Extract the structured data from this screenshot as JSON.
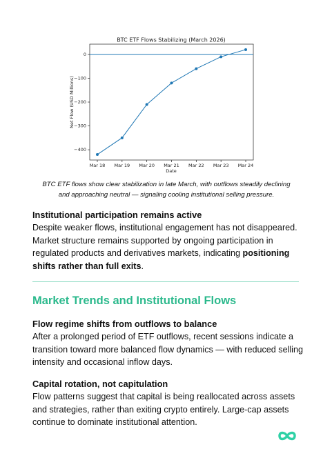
{
  "chart_data": {
    "type": "line",
    "title": "BTC ETF Flows Stabilizing (March 2026)",
    "xlabel": "Date",
    "ylabel": "Net Flow (USD Millions)",
    "categories": [
      "Mar 18",
      "Mar 19",
      "Mar 20",
      "Mar 21",
      "Mar 22",
      "Mar 23",
      "Mar 24"
    ],
    "values": [
      -420,
      -350,
      -210,
      -120,
      -60,
      -10,
      20
    ],
    "color": "#1f77b4",
    "ylim": [
      -443,
      43
    ],
    "yticks": [
      {
        "value": -400,
        "label": "−400"
      },
      {
        "value": -300,
        "label": "−300"
      },
      {
        "value": -200,
        "label": "−200"
      },
      {
        "value": -100,
        "label": "−100"
      },
      0
    ],
    "hline": 0,
    "grid": false
  },
  "caption": "BTC ETF flows show clear stabilization in late March, with outflows steadily declining and approaching neutral — signaling cooling institutional selling pressure.",
  "section1": {
    "heading": "Institutional participation remains active",
    "text": "Despite weaker flows, institutional engagement has not disappeared. Market structure remains supported by ongoing participation in regulated products and derivatives markets, indicating ",
    "bold": "positioning shifts rather than full exits",
    "end": "."
  },
  "section2": {
    "heading": "Market Trends and Institutional Flows"
  },
  "sub1": {
    "heading": "Flow regime shifts from outflows to balance",
    "text": "After a prolonged period of ETF outflows, recent sessions indicate a transition toward more balanced flow dynamics — with reduced selling intensity and occasional inflow days."
  },
  "sub2": {
    "heading": "Capital rotation, not capitulation",
    "text": "Flow patterns suggest that capital is being reallocated across assets and strategies, rather than exiting crypto entirely. Large-cap assets continue to dominate institutional attention."
  }
}
